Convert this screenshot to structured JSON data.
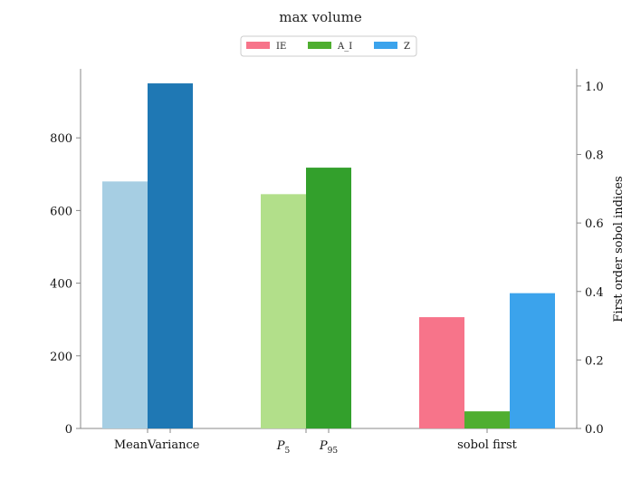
{
  "chart_data": {
    "type": "bar",
    "title": "max volume",
    "xlabel": "",
    "ylabel": "",
    "ylabel_right": "First order sobol indices",
    "ylim": [
      0,
      990
    ],
    "ylim_right": [
      0,
      1.05
    ],
    "yticks": [
      "0",
      "200",
      "400",
      "600",
      "800"
    ],
    "yticks_right": [
      "0.0",
      "0.2",
      "0.4",
      "0.6",
      "0.8",
      "1.0"
    ],
    "groups": [
      {
        "axis": "left",
        "bars": [
          {
            "label": "Mean",
            "value": 680,
            "color": "#a6cee3"
          },
          {
            "label": "Variance",
            "value": 950,
            "color": "#1f78b4"
          }
        ]
      },
      {
        "axis": "left",
        "bars": [
          {
            "label_base": "P",
            "label_sub": "5",
            "value": 645,
            "color": "#b2df8a"
          },
          {
            "label_base": "P",
            "label_sub": "95",
            "value": 718,
            "color": "#33a02c"
          }
        ]
      },
      {
        "axis": "right",
        "label": "sobol first",
        "bars": [
          {
            "series": "IE",
            "value": 0.325,
            "color": "#f7748a"
          },
          {
            "series": "A_I",
            "value": 0.05,
            "color": "#4fae30"
          },
          {
            "series": "Z",
            "value": 0.395,
            "color": "#3ba3ec"
          }
        ]
      }
    ],
    "legend": {
      "position": "top-center",
      "entries": [
        {
          "name": "IE",
          "color": "#f7748a"
        },
        {
          "name": "A_I",
          "color": "#4fae30"
        },
        {
          "name": "Z",
          "color": "#3ba3ec"
        }
      ]
    },
    "grid": false
  }
}
